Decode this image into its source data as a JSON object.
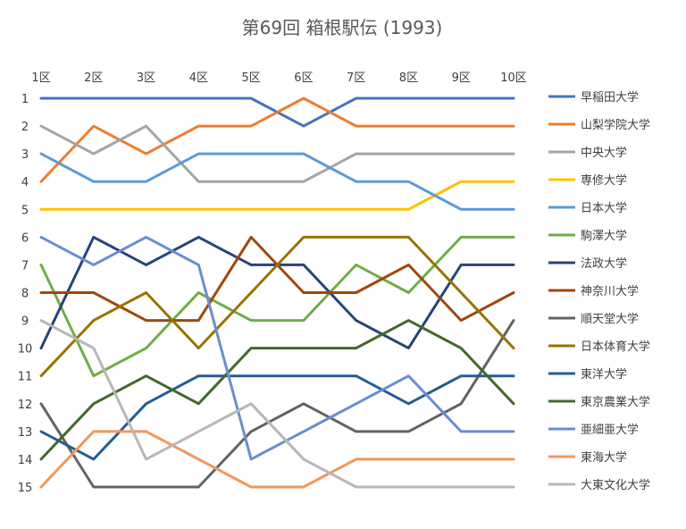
{
  "chart_data": {
    "type": "line",
    "title": "第69回 箱根駅伝 (1993)",
    "xlabel": "",
    "ylabel": "",
    "x": [
      "1区",
      "2区",
      "3区",
      "4区",
      "5区",
      "6区",
      "7区",
      "8区",
      "9区",
      "10区"
    ],
    "y_ticks": [
      "1",
      "2",
      "3",
      "4",
      "5",
      "6",
      "7",
      "8",
      "9",
      "10",
      "11",
      "12",
      "13",
      "14",
      "15"
    ],
    "ylim": [
      1,
      15
    ],
    "y_reversed": true,
    "x_axis_position": "top",
    "grid": false,
    "legend_position": "right",
    "series": [
      {
        "name": "早稲田大学",
        "color": "#4472C4",
        "values": [
          1,
          1,
          1,
          1,
          1,
          2,
          1,
          1,
          1,
          1
        ]
      },
      {
        "name": "山梨学院大学",
        "color": "#ED7D31",
        "values": [
          4,
          2,
          3,
          2,
          2,
          1,
          2,
          2,
          2,
          2
        ]
      },
      {
        "name": "中央大学",
        "color": "#A5A5A5",
        "values": [
          2,
          3,
          2,
          4,
          4,
          4,
          3,
          3,
          3,
          3
        ]
      },
      {
        "name": "専修大学",
        "color": "#FFC000",
        "values": [
          5,
          5,
          5,
          5,
          5,
          5,
          5,
          5,
          4,
          4
        ]
      },
      {
        "name": "日本大学",
        "color": "#5B9BD5",
        "values": [
          3,
          4,
          4,
          3,
          3,
          3,
          4,
          4,
          5,
          5
        ]
      },
      {
        "name": "駒澤大学",
        "color": "#70AD47",
        "values": [
          7,
          11,
          10,
          8,
          9,
          9,
          7,
          8,
          6,
          6
        ]
      },
      {
        "name": "法政大学",
        "color": "#264478",
        "values": [
          10,
          6,
          7,
          6,
          7,
          7,
          9,
          10,
          7,
          7
        ]
      },
      {
        "name": "神奈川大学",
        "color": "#9E480E",
        "values": [
          8,
          8,
          9,
          9,
          6,
          8,
          8,
          7,
          9,
          8
        ]
      },
      {
        "name": "順天堂大学",
        "color": "#636363",
        "values": [
          12,
          15,
          15,
          15,
          13,
          12,
          13,
          13,
          12,
          9
        ]
      },
      {
        "name": "日本体育大学",
        "color": "#997300",
        "values": [
          11,
          9,
          8,
          10,
          8,
          6,
          6,
          6,
          8,
          10
        ]
      },
      {
        "name": "東洋大学",
        "color": "#255E91",
        "values": [
          13,
          14,
          12,
          11,
          11,
          11,
          11,
          12,
          11,
          11
        ]
      },
      {
        "name": "東京農業大学",
        "color": "#43682B",
        "values": [
          14,
          12,
          11,
          12,
          10,
          10,
          10,
          9,
          10,
          12
        ]
      },
      {
        "name": "亜細亜大学",
        "color": "#698ED0",
        "values": [
          6,
          7,
          6,
          7,
          14,
          13,
          12,
          11,
          13,
          13
        ]
      },
      {
        "name": "東海大学",
        "color": "#F1975A",
        "values": [
          15,
          13,
          13,
          14,
          15,
          15,
          14,
          14,
          14,
          14
        ]
      },
      {
        "name": "大東文化大学",
        "color": "#B7B7B7",
        "values": [
          9,
          10,
          14,
          13,
          12,
          14,
          15,
          15,
          15,
          15
        ]
      }
    ]
  }
}
